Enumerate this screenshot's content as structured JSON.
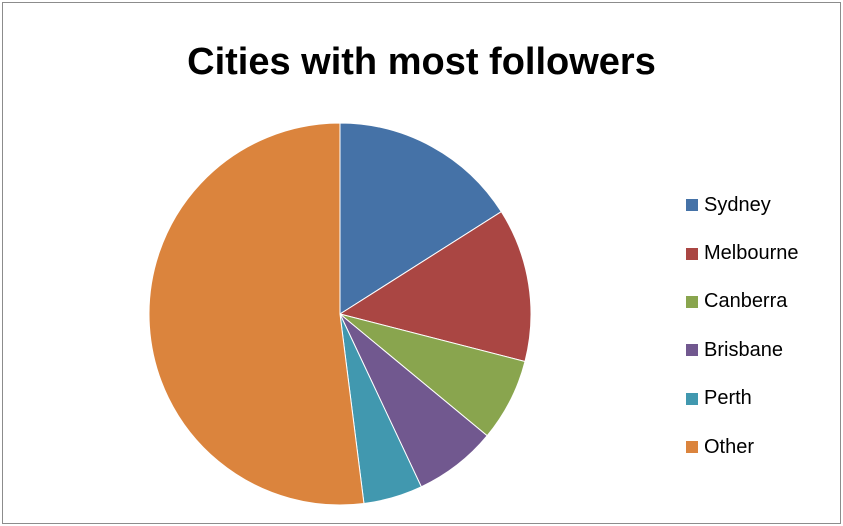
{
  "chart_data": {
    "type": "pie",
    "title": "Cities with most followers",
    "legend_position": "right",
    "slices": [
      {
        "label": "Sydney",
        "value": 16,
        "color": "#4572a7"
      },
      {
        "label": "Melbourne",
        "value": 13,
        "color": "#aa4643"
      },
      {
        "label": "Canberra",
        "value": 7,
        "color": "#89a54e"
      },
      {
        "label": "Brisbane",
        "value": 7,
        "color": "#71588f"
      },
      {
        "label": "Perth",
        "value": 5,
        "color": "#4198af"
      },
      {
        "label": "Other",
        "value": 52,
        "color": "#db843d"
      }
    ]
  }
}
